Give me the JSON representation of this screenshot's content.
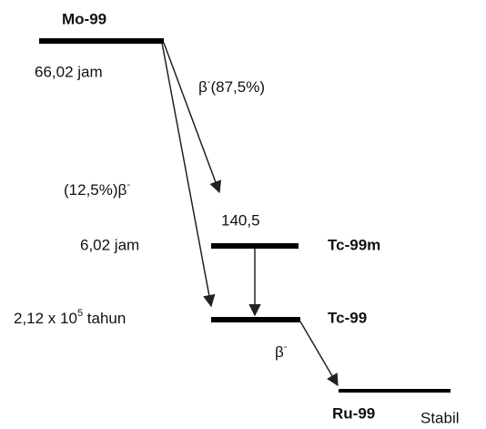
{
  "nodes": [
    {
      "label": "Mo-99",
      "half_life": "66,02 jam"
    },
    {
      "label": "Tc-99m",
      "energy": "140,5",
      "half_life": "6,02 jam"
    },
    {
      "label": "Tc-99",
      "half_life": {
        "base": "2,12 x 10",
        "exponent": "5",
        "unit": " tahun"
      }
    },
    {
      "label": "Ru-99",
      "note": "Stabil"
    }
  ],
  "transitions": [
    {
      "symbol": "β",
      "charge": "-",
      "branch": "(87,5%)"
    },
    {
      "branch": "(12,5%)",
      "symbol": "β",
      "charge": "-"
    },
    {
      "symbol": "β",
      "charge": "-"
    }
  ]
}
